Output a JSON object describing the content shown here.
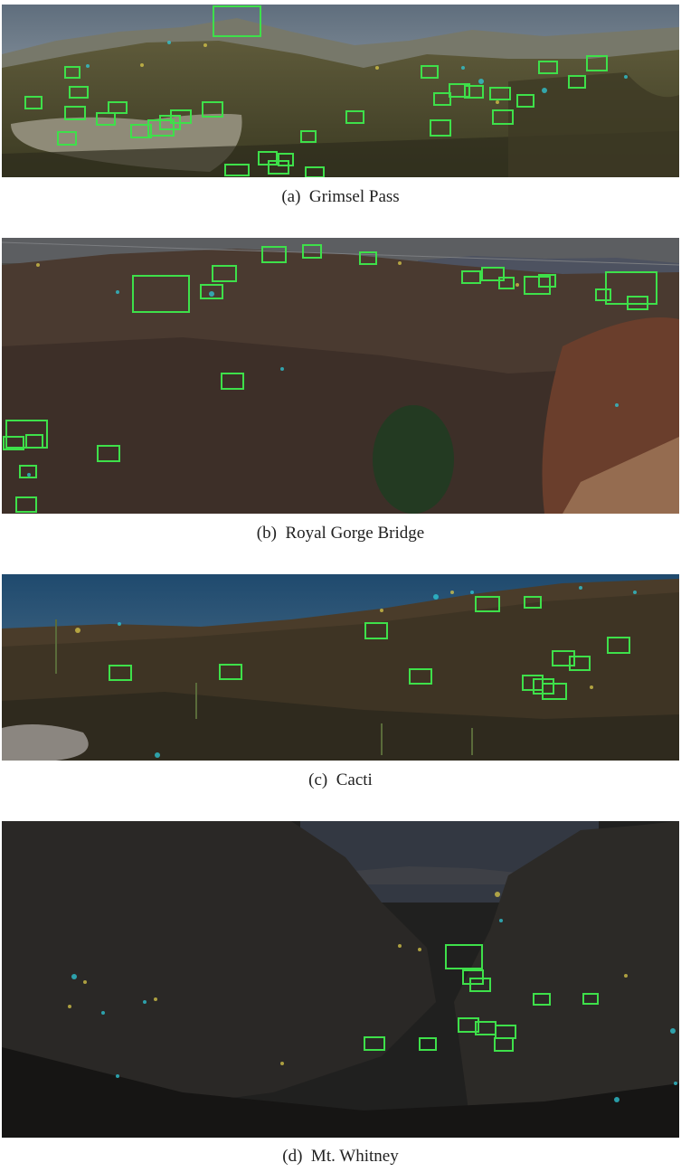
{
  "panels": [
    {
      "caption": "(a)  Grimsel Pass"
    },
    {
      "caption": "(b)  Royal Gorge Bridge"
    },
    {
      "caption": "(c)  Cacti"
    },
    {
      "caption": "(d)  Mt. Whitney"
    }
  ],
  "colors": {
    "box": "#3ee04a",
    "dot_cyan": "#2fc9d8",
    "dot_yellow": "#d8c74a"
  }
}
